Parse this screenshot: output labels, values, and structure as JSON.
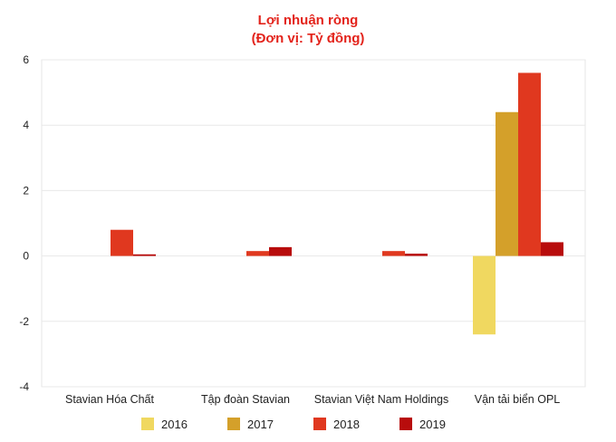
{
  "chart_data": {
    "type": "bar",
    "title": "Lợi nhuận ròng",
    "subtitle": "(Đơn vị: Tỷ đồng)",
    "xlabel": "",
    "ylabel": "",
    "ylim": [
      -4,
      6
    ],
    "yticks": [
      6,
      4,
      2,
      0,
      -2,
      -4
    ],
    "grid": true,
    "legend_position": "bottom",
    "categories": [
      "Stavian Hóa Chất",
      "Tập đoàn Stavian",
      "Stavian Việt Nam Holdings",
      "Vận tải biển OPL"
    ],
    "series": [
      {
        "name": "2016",
        "color": "#f0d860",
        "values": [
          0,
          0,
          0,
          -2.4
        ]
      },
      {
        "name": "2017",
        "color": "#d4a02a",
        "values": [
          0,
          0,
          0,
          4.4
        ]
      },
      {
        "name": "2018",
        "color": "#e0381f",
        "values": [
          0.8,
          0.15,
          0.15,
          5.6
        ]
      },
      {
        "name": "2019",
        "color": "#b80c0c",
        "values": [
          0.05,
          0.27,
          0.07,
          0.42
        ]
      }
    ]
  }
}
